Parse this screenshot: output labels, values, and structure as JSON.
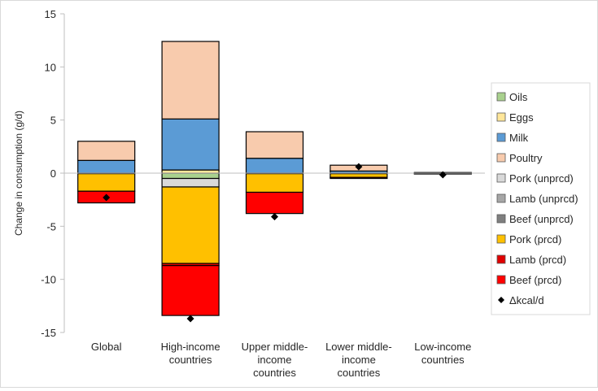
{
  "chart_data": {
    "type": "bar",
    "stacked": true,
    "title": "",
    "xlabel": "",
    "ylabel": "Change in consumption (g/d)",
    "ylim": [
      -15,
      15
    ],
    "yticks": [
      15,
      10,
      5,
      0,
      -5,
      -10,
      -15
    ],
    "grid": false,
    "legend_position": "right",
    "categories": [
      "Global",
      "High-income countries",
      "Upper middle-income countries",
      "Lower middle-income countries",
      "Low-income countries"
    ],
    "category_lines": [
      [
        "Global"
      ],
      [
        "High-income",
        "countries"
      ],
      [
        "Upper middle-",
        "income",
        "countries"
      ],
      [
        "Lower middle-",
        "income",
        "countries"
      ],
      [
        "Low-income",
        "countries"
      ]
    ],
    "series": [
      {
        "name": "Oils",
        "color": "#a9d18e",
        "values": [
          0,
          -0.5,
          0,
          0,
          0
        ]
      },
      {
        "name": "Eggs",
        "color": "#ffe699",
        "values": [
          0,
          0.3,
          0,
          0,
          0
        ]
      },
      {
        "name": "Milk",
        "color": "#5b9bd5",
        "values": [
          1.2,
          4.8,
          1.4,
          0.2,
          0.02
        ]
      },
      {
        "name": "Poultry",
        "color": "#f8cbad",
        "values": [
          1.8,
          7.3,
          2.5,
          0.55,
          0.04
        ]
      },
      {
        "name": "Pork (unprcd)",
        "color": "#d9d9d9",
        "values": [
          -0.05,
          -0.8,
          -0.05,
          -0.05,
          0
        ]
      },
      {
        "name": "Lamb (unprcd)",
        "color": "#a6a6a6",
        "values": [
          0,
          0,
          0,
          0,
          0
        ]
      },
      {
        "name": "Beef (unprcd)",
        "color": "#7f7f7f",
        "values": [
          0,
          0,
          0,
          0,
          0
        ]
      },
      {
        "name": "Pork (prcd)",
        "color": "#ffc000",
        "values": [
          -1.65,
          -7.2,
          -1.75,
          -0.35,
          -0.05
        ]
      },
      {
        "name": "Lamb (prcd)",
        "color": "#e00000",
        "values": [
          0,
          -0.2,
          0,
          0,
          0
        ]
      },
      {
        "name": "Beef (prcd)",
        "color": "#ff0000",
        "values": [
          -1.1,
          -4.7,
          -2.0,
          -0.1,
          -0.03
        ]
      }
    ],
    "markers": {
      "name": "Δkcal/d",
      "color": "#000000",
      "values": [
        -2.3,
        -13.7,
        -4.1,
        0.6,
        -0.15
      ]
    }
  }
}
